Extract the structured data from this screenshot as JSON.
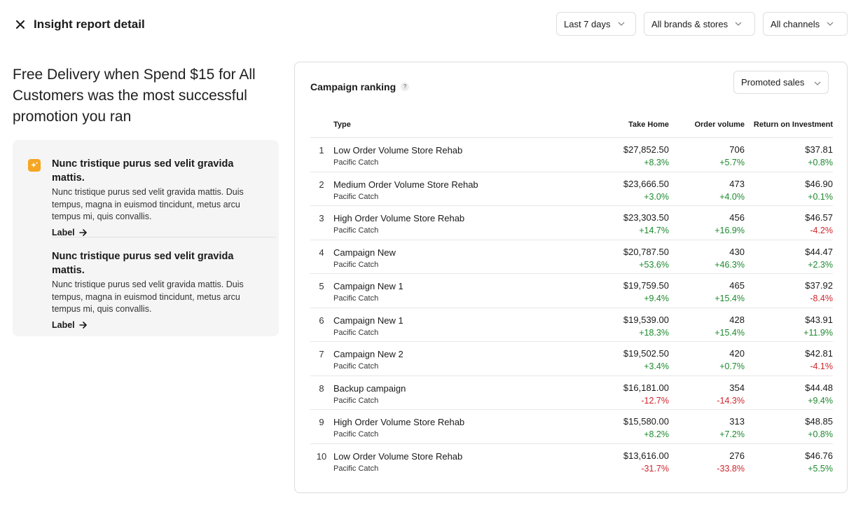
{
  "header": {
    "title": "Insight report detail",
    "filters": [
      {
        "label": "Last 7 days"
      },
      {
        "label": "All brands & stores"
      },
      {
        "label": "All channels"
      }
    ]
  },
  "headline": "Free Delivery when Spend $15 for All Customers was the most successful promotion you ran",
  "insights": [
    {
      "title": "Nunc tristique purus sed velit gravida mattis.",
      "body": "Nunc tristique purus sed velit gravida mattis. Duis tempus, magna in euismod tincidunt, metus arcu tempus mi, quis convallis.",
      "link": "Label"
    },
    {
      "title": "Nunc tristique purus sed velit gravida mattis.",
      "body": "Nunc tristique purus sed velit gravida mattis. Duis tempus, magna in euismod tincidunt, metus arcu tempus mi, quis convallis.",
      "link": "Label"
    }
  ],
  "ranking": {
    "title": "Campaign ranking",
    "help": "?",
    "sort_label": "Promoted sales",
    "columns": {
      "type": "Type",
      "take_home": "Take Home",
      "order_volume": "Order volume",
      "roi": "Return on Investment"
    },
    "rows": [
      {
        "rank": "1",
        "name": "Low Order Volume Store Rehab",
        "store": "Pacific Catch",
        "take_home": "$27,852.50",
        "take_home_change": "+8.3%",
        "orders": "706",
        "orders_change": "+5.7%",
        "roi": "$37.81",
        "roi_change": "+0.8%"
      },
      {
        "rank": "2",
        "name": "Medium Order Volume Store Rehab",
        "store": "Pacific Catch",
        "take_home": "$23,666.50",
        "take_home_change": "+3.0%",
        "orders": "473",
        "orders_change": "+4.0%",
        "roi": "$46.90",
        "roi_change": "+0.1%"
      },
      {
        "rank": "3",
        "name": "High Order Volume Store Rehab",
        "store": "Pacific Catch",
        "take_home": "$23,303.50",
        "take_home_change": "+14.7%",
        "orders": "456",
        "orders_change": "+16.9%",
        "roi": "$46.57",
        "roi_change": "-4.2%"
      },
      {
        "rank": "4",
        "name": "Campaign New",
        "store": "Pacific Catch",
        "take_home": "$20,787.50",
        "take_home_change": "+53.6%",
        "orders": "430",
        "orders_change": "+46.3%",
        "roi": "$44.47",
        "roi_change": "+2.3%"
      },
      {
        "rank": "5",
        "name": "Campaign New 1",
        "store": "Pacific Catch",
        "take_home": "$19,759.50",
        "take_home_change": "+9.4%",
        "orders": "465",
        "orders_change": "+15.4%",
        "roi": "$37.92",
        "roi_change": "-8.4%"
      },
      {
        "rank": "6",
        "name": "Campaign New 1",
        "store": "Pacific Catch",
        "take_home": "$19,539.00",
        "take_home_change": "+18.3%",
        "orders": "428",
        "orders_change": "+15.4%",
        "roi": "$43.91",
        "roi_change": "+11.9%"
      },
      {
        "rank": "7",
        "name": "Campaign New 2",
        "store": "Pacific Catch",
        "take_home": "$19,502.50",
        "take_home_change": "+3.4%",
        "orders": "420",
        "orders_change": "+0.7%",
        "roi": "$42.81",
        "roi_change": "-4.1%"
      },
      {
        "rank": "8",
        "name": "Backup campaign",
        "store": "Pacific Catch",
        "take_home": "$16,181.00",
        "take_home_change": "-12.7%",
        "orders": "354",
        "orders_change": "-14.3%",
        "roi": "$44.48",
        "roi_change": "+9.4%"
      },
      {
        "rank": "9",
        "name": "High Order Volume Store Rehab",
        "store": "Pacific Catch",
        "take_home": "$15,580.00",
        "take_home_change": "+8.2%",
        "orders": "313",
        "orders_change": "+7.2%",
        "roi": "$48.85",
        "roi_change": "+0.8%"
      },
      {
        "rank": "10",
        "name": "Low Order Volume Store Rehab",
        "store": "Pacific Catch",
        "take_home": "$13,616.00",
        "take_home_change": "-31.7%",
        "orders": "276",
        "orders_change": "-33.8%",
        "roi": "$46.76",
        "roi_change": "+5.5%"
      }
    ]
  },
  "colors": {
    "positive": "#1d8a2f",
    "negative": "#d0242b",
    "accent": "#f5a623"
  },
  "icons": {
    "close": "close-icon",
    "chevron": "chevron-down-icon",
    "spark": "sparkle-icon",
    "arrow": "arrow-right-icon",
    "help": "help-icon"
  }
}
